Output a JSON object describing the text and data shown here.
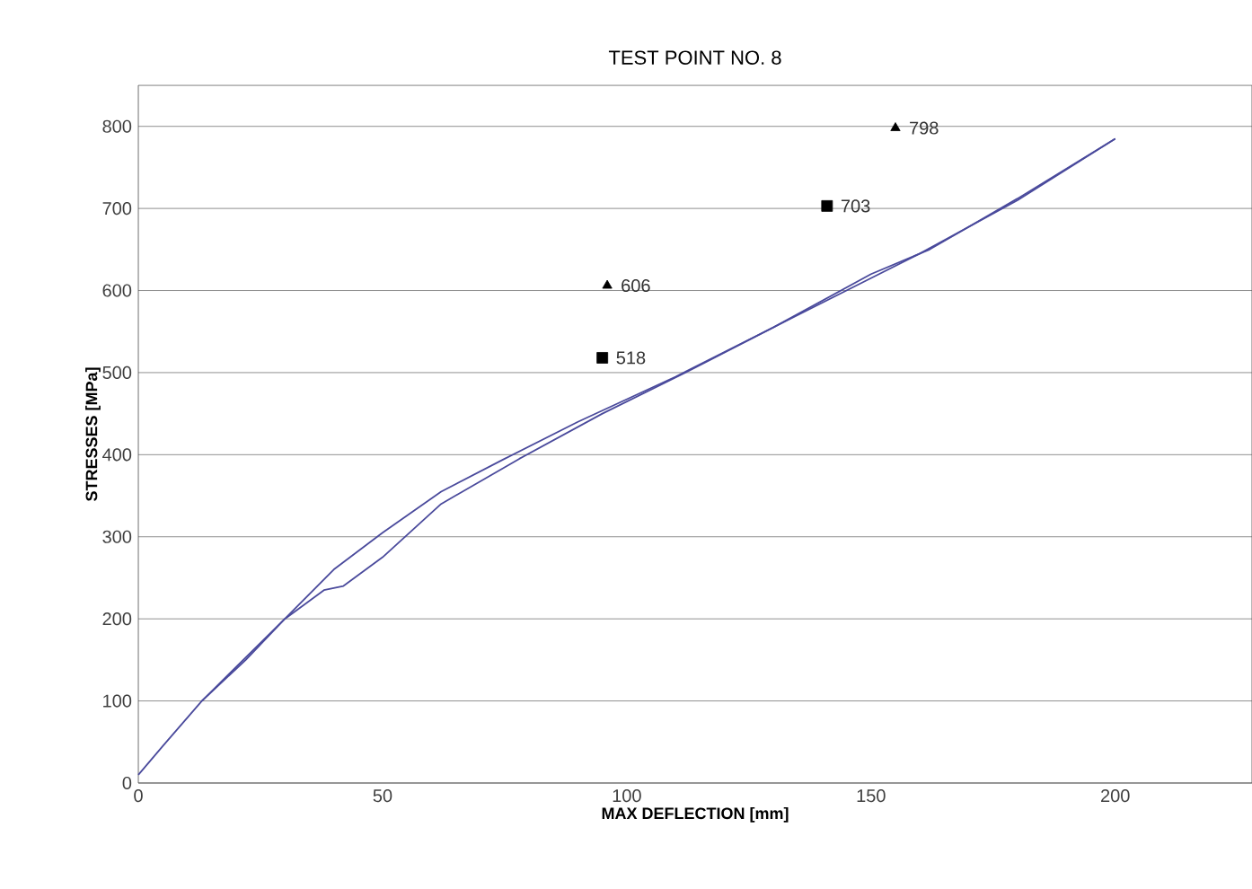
{
  "chart_data": {
    "type": "line",
    "title": "TEST POINT NO. 8",
    "xlabel": "MAX  DEFLECTION [mm]",
    "ylabel": "STRESSES [MPa]",
    "xlim": [
      0,
      228
    ],
    "ylim": [
      0,
      850
    ],
    "xticks": [
      0,
      50,
      100,
      150,
      200
    ],
    "yticks": [
      0,
      100,
      200,
      300,
      400,
      500,
      600,
      700,
      800
    ],
    "grid": "y",
    "line_style": "solid",
    "series": [
      {
        "color": "#4a4a9c",
        "marker": "none",
        "x": [
          0,
          5,
          13,
          22,
          30,
          40,
          50,
          62,
          75,
          90,
          110,
          130,
          150,
          160,
          180,
          200
        ],
        "values": [
          10,
          45,
          100,
          150,
          200,
          260,
          305,
          355,
          395,
          440,
          495,
          555,
          615,
          645,
          710,
          785
        ]
      },
      {
        "color": "#4a4a9c",
        "marker": "none",
        "x": [
          13,
          30,
          38,
          42,
          50,
          62,
          78,
          95,
          112,
          130,
          150,
          162,
          180,
          200
        ],
        "values": [
          100,
          200,
          235,
          240,
          275,
          340,
          395,
          450,
          500,
          555,
          620,
          650,
          712,
          785
        ]
      },
      {
        "type": "scatter",
        "color": "#000000",
        "marker": "square",
        "x": [
          95,
          141
        ],
        "values": [
          518,
          703
        ],
        "value_labels": [
          "518",
          "703"
        ]
      },
      {
        "type": "scatter",
        "color": "#000000",
        "marker": "triangle",
        "x": [
          96,
          155
        ],
        "values": [
          606,
          798
        ],
        "value_labels": [
          "606",
          "798"
        ]
      }
    ]
  }
}
